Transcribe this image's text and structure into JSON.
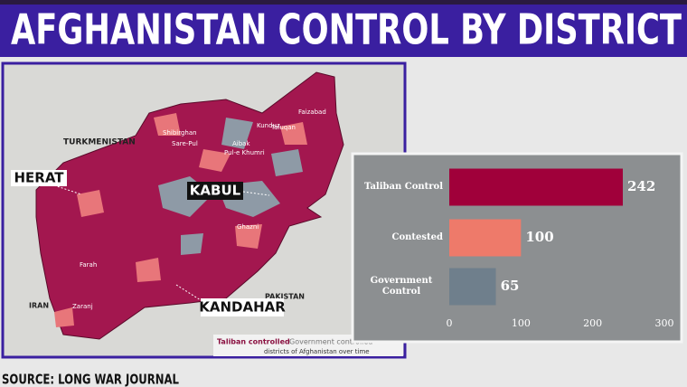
{
  "header": {
    "title": "AFGHANISTAN CONTROL BY DISTRICT"
  },
  "source": "SOURCE: LONG WAR JOURNAL",
  "map": {
    "labels": [
      "TURKMENISTAN",
      "Kunduz",
      "Taluqan",
      "Faizabad",
      "Shibirghan",
      "Sare-Pul",
      "Aibak",
      "Pul-e Khumri",
      "Ghazni",
      "Farah",
      "IRAN",
      "Zaranj",
      "PAKISTAN"
    ],
    "callouts": [
      "HERAT",
      "KABUL",
      "KANDAHAR"
    ],
    "legend": [
      "Taliban controlled",
      "Government controlled"
    ],
    "caption": "districts of Afghanistan over time"
  },
  "chart_data": {
    "type": "bar",
    "orientation": "horizontal",
    "categories": [
      "Taliban Control",
      "Contested",
      "Government Control"
    ],
    "values": [
      242,
      100,
      65
    ],
    "colors": [
      "#a0003a",
      "#ee7a6a",
      "#6f7f8c"
    ],
    "xlim": [
      0,
      300
    ],
    "xticks": [
      0,
      100,
      200,
      300
    ]
  }
}
